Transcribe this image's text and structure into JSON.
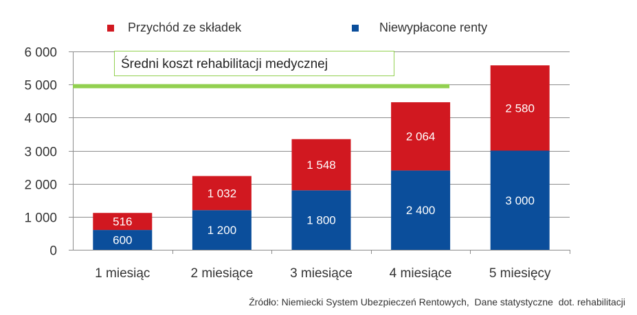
{
  "chart_data": {
    "type": "bar",
    "stacked": true,
    "categories": [
      "1 miesiąc",
      "2 miesiące",
      "3 miesiące",
      "4 miesiące",
      "5 miesięcy"
    ],
    "series": [
      {
        "name": "Niewypłacone renty",
        "color": "#0b4e9b",
        "values": [
          600,
          1200,
          1800,
          2400,
          3000
        ],
        "labels": [
          "600",
          "1 200",
          "1 800",
          "2 400",
          "3 000"
        ]
      },
      {
        "name": "Przychód ze składek",
        "color": "#d11820",
        "values": [
          516,
          1032,
          1548,
          2064,
          2580
        ],
        "labels": [
          "516",
          "1 032",
          "1 548",
          "2 064",
          "2 580"
        ]
      }
    ],
    "legend_order": [
      1,
      0
    ],
    "legend_position": "top",
    "ylim": [
      0,
      6000
    ],
    "yticks": [
      0,
      1000,
      2000,
      3000,
      4000,
      5000,
      6000
    ],
    "ytick_labels": [
      "0",
      "1 000",
      "2 000",
      "3 000",
      "4 000",
      "5 000",
      "6 000"
    ],
    "grid": true,
    "reference_line": {
      "value": 4950,
      "color": "#92d050",
      "label": "Średni koszt rehabilitacji medycznej"
    },
    "source": "Źródło: Niemiecki System Ubezpieczeń Rentowych,  Dane statystyczne  dot. rehabilitacji"
  }
}
